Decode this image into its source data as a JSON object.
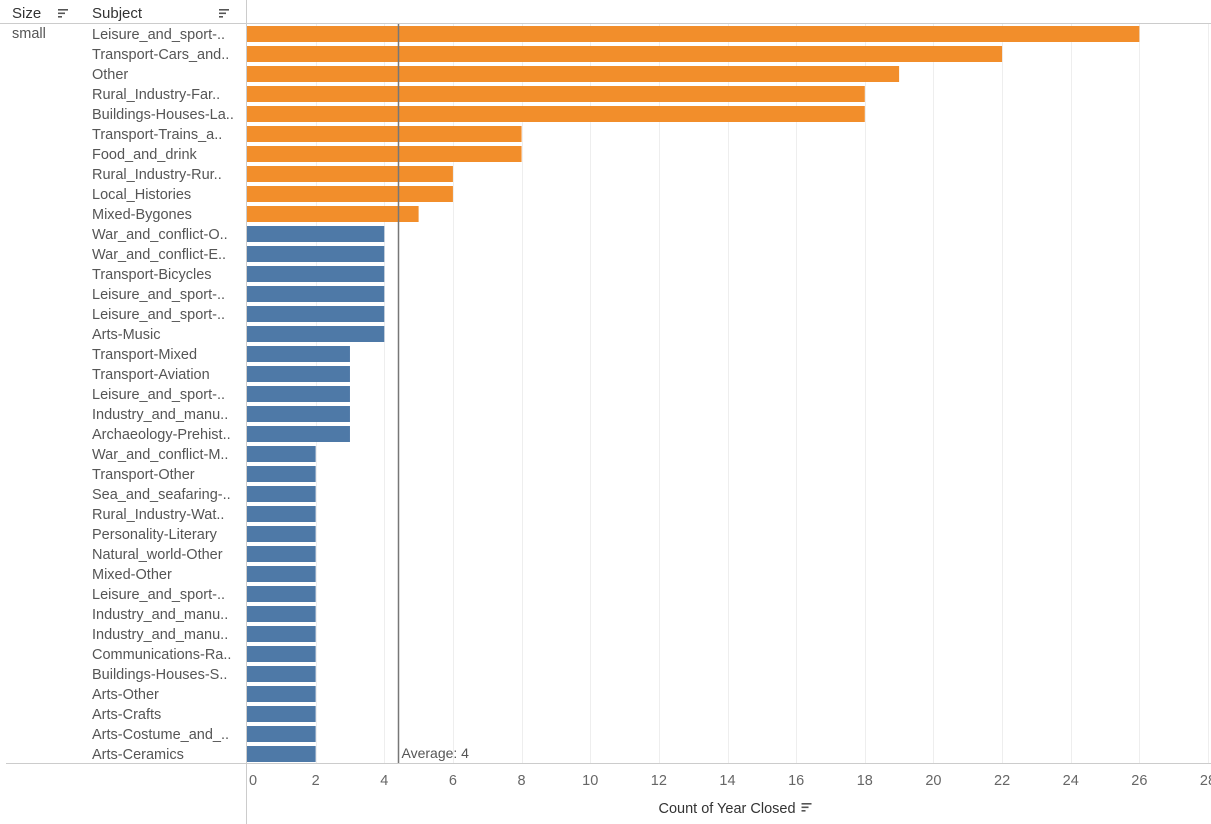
{
  "headers": {
    "size": "Size",
    "subject": "Subject"
  },
  "size_value": "small",
  "average_label": "Average: 4",
  "colors": {
    "highlight": "#F28E2B",
    "base": "#4E79A7",
    "grid": "#EEEEEE",
    "rule": "#CCCCCC",
    "reference": "#777777"
  },
  "chart_data": {
    "type": "bar",
    "orientation": "horizontal",
    "xlabel": "Count of Year Closed",
    "xlim": [
      0,
      28
    ],
    "x_ticks": [
      0,
      2,
      4,
      6,
      8,
      10,
      12,
      14,
      16,
      18,
      20,
      22,
      24,
      26,
      28
    ],
    "average": 4.4,
    "highlight_threshold": 5,
    "grid": true,
    "categories": [
      "Leisure_and_sport-..",
      "Transport-Cars_and..",
      "Other",
      "Rural_Industry-Far..",
      "Buildings-Houses-La..",
      "Transport-Trains_a..",
      "Food_and_drink",
      "Rural_Industry-Rur..",
      "Local_Histories",
      "Mixed-Bygones",
      "War_and_conflict-O..",
      "War_and_conflict-E..",
      "Transport-Bicycles",
      "Leisure_and_sport-..",
      "Leisure_and_sport-..",
      "Arts-Music",
      "Transport-Mixed",
      "Transport-Aviation",
      "Leisure_and_sport-..",
      "Industry_and_manu..",
      "Archaeology-Prehist..",
      "War_and_conflict-M..",
      "Transport-Other",
      "Sea_and_seafaring-..",
      "Rural_Industry-Wat..",
      "Personality-Literary",
      "Natural_world-Other",
      "Mixed-Other",
      "Leisure_and_sport-..",
      "Industry_and_manu..",
      "Industry_and_manu..",
      "Communications-Ra..",
      "Buildings-Houses-S..",
      "Arts-Other",
      "Arts-Crafts",
      "Arts-Costume_and_..",
      "Arts-Ceramics"
    ],
    "values": [
      26,
      22,
      19,
      18,
      18,
      8,
      8,
      6,
      6,
      5,
      4,
      4,
      4,
      4,
      4,
      4,
      3,
      3,
      3,
      3,
      3,
      2,
      2,
      2,
      2,
      2,
      2,
      2,
      2,
      2,
      2,
      2,
      2,
      2,
      2,
      2,
      2
    ]
  }
}
